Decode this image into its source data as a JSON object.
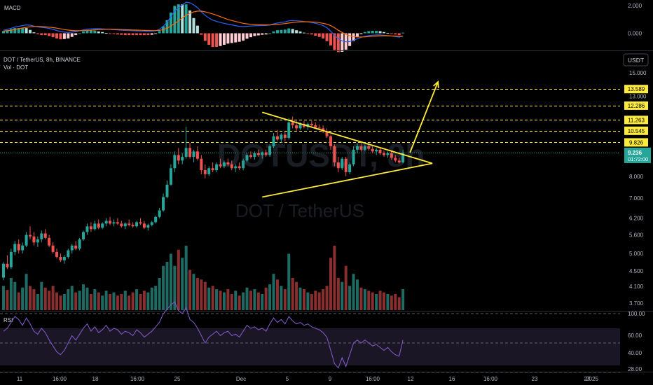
{
  "chart_data": {
    "type": "candlestick",
    "symbol_line": "DOT / TetherUS, 8h, BINANCE",
    "volume_label": "Vol · DOT",
    "watermark_symbol": "DOTUSDT, 8h",
    "watermark_name": "DOT / TetherUS",
    "currency_button": "USDT",
    "scale": "log",
    "price_ticks": [
      "15.000",
      "13.000",
      "8.000",
      "7.000",
      "6.200",
      "5.600",
      "5.000",
      "4.500",
      "4.100",
      "3.700"
    ],
    "price_tick_values": [
      15.0,
      13.0,
      8.0,
      7.0,
      6.2,
      5.6,
      5.0,
      4.5,
      4.1,
      3.7
    ],
    "level_lines": [
      {
        "label": "13.589",
        "value": 13.589
      },
      {
        "label": "12.286",
        "value": 12.286
      },
      {
        "label": "11.263",
        "value": 11.263
      },
      {
        "label": "10.545",
        "value": 10.545
      },
      {
        "label": "9.826",
        "value": 9.826
      }
    ],
    "last_price": {
      "label": "9.236",
      "value": 9.236,
      "countdown": "01:72:00"
    },
    "level_color": "#ffeb3b",
    "up_color": "#26a69a",
    "down_color": "#ef5350",
    "triangle": {
      "color": "#ffeb3b",
      "upper_start": 11.8,
      "lower_start": 7.05,
      "apex": 8.65,
      "breakout_target": 14.2
    },
    "candles": [
      [
        4.32,
        4.75,
        4.25,
        4.7
      ],
      [
        4.7,
        4.95,
        4.55,
        4.6
      ],
      [
        4.6,
        5.15,
        4.55,
        5.05
      ],
      [
        5.05,
        5.4,
        4.95,
        5.3
      ],
      [
        5.3,
        5.45,
        5.0,
        5.1
      ],
      [
        5.1,
        5.35,
        5.0,
        5.25
      ],
      [
        5.25,
        5.7,
        5.2,
        5.6
      ],
      [
        5.6,
        5.9,
        5.45,
        5.55
      ],
      [
        5.55,
        5.7,
        5.25,
        5.35
      ],
      [
        5.35,
        5.55,
        5.2,
        5.45
      ],
      [
        5.45,
        5.75,
        5.35,
        5.65
      ],
      [
        5.65,
        5.8,
        5.45,
        5.5
      ],
      [
        5.5,
        5.6,
        5.2,
        5.25
      ],
      [
        5.25,
        5.35,
        5.0,
        5.05
      ],
      [
        5.05,
        5.15,
        4.85,
        4.9
      ],
      [
        4.9,
        5.0,
        4.75,
        4.8
      ],
      [
        4.8,
        4.95,
        4.7,
        4.9
      ],
      [
        4.9,
        5.15,
        4.85,
        5.1
      ],
      [
        5.1,
        5.3,
        5.0,
        5.25
      ],
      [
        5.25,
        5.4,
        5.1,
        5.15
      ],
      [
        5.15,
        5.5,
        5.1,
        5.45
      ],
      [
        5.45,
        5.75,
        5.4,
        5.7
      ],
      [
        5.7,
        6.0,
        5.6,
        5.9
      ],
      [
        5.9,
        6.05,
        5.7,
        5.8
      ],
      [
        5.8,
        6.1,
        5.75,
        6.0
      ],
      [
        6.0,
        6.15,
        5.8,
        5.85
      ],
      [
        5.85,
        6.05,
        5.8,
        6.0
      ],
      [
        6.0,
        6.2,
        5.9,
        6.1
      ],
      [
        6.1,
        6.25,
        5.95,
        6.0
      ],
      [
        6.0,
        6.15,
        5.9,
        6.05
      ],
      [
        6.05,
        6.2,
        5.95,
        6.0
      ],
      [
        6.0,
        6.1,
        5.85,
        5.9
      ],
      [
        5.9,
        6.05,
        5.8,
        6.0
      ],
      [
        6.0,
        6.15,
        5.9,
        5.95
      ],
      [
        5.95,
        6.05,
        5.85,
        5.9
      ],
      [
        5.9,
        6.1,
        5.85,
        6.05
      ],
      [
        6.05,
        6.2,
        5.95,
        6.0
      ],
      [
        6.0,
        6.1,
        5.8,
        5.85
      ],
      [
        5.85,
        6.0,
        5.75,
        5.95
      ],
      [
        5.95,
        6.1,
        5.9,
        6.05
      ],
      [
        6.05,
        6.3,
        6.0,
        6.25
      ],
      [
        6.25,
        6.6,
        6.2,
        6.5
      ],
      [
        6.5,
        7.2,
        6.45,
        7.05
      ],
      [
        7.05,
        7.8,
        7.0,
        7.6
      ],
      [
        7.6,
        8.6,
        7.55,
        8.4
      ],
      [
        8.4,
        9.3,
        8.2,
        9.1
      ],
      [
        9.1,
        9.5,
        8.6,
        8.8
      ],
      [
        8.8,
        9.2,
        8.6,
        9.0
      ],
      [
        9.0,
        10.8,
        8.9,
        9.5
      ],
      [
        9.5,
        9.8,
        8.9,
        9.0
      ],
      [
        9.0,
        9.4,
        8.7,
        9.3
      ],
      [
        9.3,
        9.6,
        8.8,
        8.9
      ],
      [
        8.9,
        9.1,
        8.1,
        8.3
      ],
      [
        8.3,
        8.6,
        7.9,
        8.1
      ],
      [
        8.1,
        8.5,
        8.0,
        8.4
      ],
      [
        8.4,
        8.7,
        8.2,
        8.3
      ],
      [
        8.3,
        8.7,
        8.2,
        8.6
      ],
      [
        8.6,
        8.9,
        8.4,
        8.5
      ],
      [
        8.5,
        8.8,
        8.4,
        8.7
      ],
      [
        8.7,
        8.9,
        8.5,
        8.6
      ],
      [
        8.6,
        8.8,
        8.3,
        8.4
      ],
      [
        8.4,
        8.6,
        8.2,
        8.5
      ],
      [
        8.5,
        8.7,
        8.3,
        8.4
      ],
      [
        8.4,
        8.9,
        8.3,
        8.8
      ],
      [
        8.8,
        9.2,
        8.7,
        9.1
      ],
      [
        9.1,
        9.3,
        8.9,
        9.0
      ],
      [
        9.0,
        9.3,
        8.85,
        9.2
      ],
      [
        9.2,
        9.4,
        9.0,
        9.1
      ],
      [
        9.1,
        9.3,
        8.9,
        9.25
      ],
      [
        9.25,
        9.4,
        9.0,
        9.1
      ],
      [
        9.1,
        9.7,
        9.0,
        9.6
      ],
      [
        9.6,
        10.4,
        9.5,
        10.2
      ],
      [
        10.2,
        10.6,
        9.9,
        10.0
      ],
      [
        10.0,
        10.4,
        9.8,
        10.3
      ],
      [
        10.3,
        10.5,
        9.9,
        10.1
      ],
      [
        10.1,
        11.4,
        10.0,
        11.1
      ],
      [
        11.1,
        11.5,
        10.7,
        10.9
      ],
      [
        10.9,
        11.2,
        10.5,
        10.7
      ],
      [
        10.7,
        11.1,
        10.6,
        11.0
      ],
      [
        11.0,
        11.2,
        10.7,
        10.8
      ],
      [
        10.8,
        11.1,
        10.6,
        11.0
      ],
      [
        11.0,
        11.2,
        10.8,
        10.9
      ],
      [
        10.9,
        11.1,
        10.7,
        10.75
      ],
      [
        10.75,
        10.95,
        10.6,
        10.7
      ],
      [
        10.7,
        10.9,
        10.4,
        10.5
      ],
      [
        10.5,
        10.7,
        10.1,
        10.2
      ],
      [
        10.2,
        10.3,
        9.4,
        9.6
      ],
      [
        9.6,
        9.7,
        8.5,
        8.7
      ],
      [
        8.7,
        9.0,
        8.2,
        8.4
      ],
      [
        8.4,
        9.0,
        8.3,
        8.9
      ],
      [
        8.9,
        9.0,
        8.0,
        8.2
      ],
      [
        8.2,
        8.7,
        8.1,
        8.6
      ],
      [
        8.6,
        9.6,
        8.5,
        9.4
      ],
      [
        9.4,
        9.8,
        9.2,
        9.6
      ],
      [
        9.6,
        9.8,
        9.3,
        9.4
      ],
      [
        9.4,
        9.7,
        9.3,
        9.6
      ],
      [
        9.6,
        9.75,
        9.35,
        9.45
      ],
      [
        9.45,
        9.6,
        9.2,
        9.3
      ],
      [
        9.3,
        9.5,
        9.1,
        9.4
      ],
      [
        9.4,
        9.5,
        9.1,
        9.2
      ],
      [
        9.2,
        9.35,
        9.0,
        9.1
      ],
      [
        9.1,
        9.3,
        8.95,
        9.2
      ],
      [
        9.2,
        9.3,
        8.85,
        8.95
      ],
      [
        8.95,
        9.1,
        8.7,
        8.8
      ],
      [
        8.8,
        8.95,
        8.65,
        8.7
      ],
      [
        8.7,
        9.4,
        8.65,
        9.236
      ]
    ],
    "volumes": [
      30,
      25,
      40,
      35,
      22,
      28,
      45,
      30,
      26,
      20,
      35,
      28,
      24,
      30,
      22,
      18,
      20,
      26,
      30,
      22,
      24,
      32,
      28,
      20,
      26,
      22,
      18,
      24,
      20,
      22,
      18,
      20,
      24,
      18,
      22,
      26,
      20,
      24,
      22,
      28,
      30,
      40,
      55,
      60,
      70,
      55,
      75,
      65,
      80,
      50,
      45,
      40,
      38,
      35,
      28,
      30,
      26,
      24,
      22,
      26,
      20,
      24,
      18,
      22,
      28,
      24,
      26,
      22,
      20,
      28,
      32,
      45,
      38,
      30,
      26,
      70,
      40,
      35,
      28,
      26,
      22,
      20,
      24,
      22,
      26,
      30,
      65,
      80,
      40,
      35,
      55,
      30,
      45,
      38,
      28,
      26,
      24,
      22,
      20,
      24,
      22,
      20,
      18,
      20,
      16,
      26
    ],
    "macd": {
      "label": "MACD",
      "ticks": [
        "2.000",
        "0.000"
      ],
      "tick_values": [
        2.0,
        0.0
      ],
      "macd_line": [
        0.22,
        0.28,
        0.36,
        0.45,
        0.5,
        0.55,
        0.6,
        0.58,
        0.52,
        0.46,
        0.42,
        0.4,
        0.35,
        0.28,
        0.2,
        0.12,
        0.08,
        0.06,
        0.08,
        0.12,
        0.18,
        0.25,
        0.3,
        0.32,
        0.34,
        0.33,
        0.32,
        0.3,
        0.28,
        0.26,
        0.24,
        0.22,
        0.2,
        0.19,
        0.18,
        0.17,
        0.16,
        0.15,
        0.14,
        0.14,
        0.18,
        0.28,
        0.5,
        0.8,
        1.2,
        1.6,
        1.85,
        2.05,
        2.25,
        2.2,
        2.05,
        1.85,
        1.55,
        1.3,
        1.1,
        0.95,
        0.85,
        0.78,
        0.72,
        0.66,
        0.6,
        0.55,
        0.5,
        0.48,
        0.5,
        0.52,
        0.54,
        0.55,
        0.56,
        0.56,
        0.6,
        0.68,
        0.74,
        0.78,
        0.82,
        0.9,
        0.92,
        0.9,
        0.88,
        0.85,
        0.82,
        0.78,
        0.72,
        0.65,
        0.55,
        0.4,
        0.15,
        -0.15,
        -0.4,
        -0.55,
        -0.62,
        -0.6,
        -0.5,
        -0.4,
        -0.3,
        -0.22,
        -0.17,
        -0.14,
        -0.12,
        -0.12,
        -0.14,
        -0.17,
        -0.2,
        -0.24,
        -0.28,
        -0.2
      ],
      "signal_line": [
        0.15,
        0.18,
        0.22,
        0.28,
        0.33,
        0.38,
        0.43,
        0.47,
        0.49,
        0.49,
        0.48,
        0.46,
        0.44,
        0.41,
        0.37,
        0.32,
        0.27,
        0.23,
        0.2,
        0.18,
        0.18,
        0.19,
        0.21,
        0.23,
        0.25,
        0.27,
        0.28,
        0.29,
        0.29,
        0.28,
        0.28,
        0.27,
        0.26,
        0.25,
        0.24,
        0.23,
        0.22,
        0.21,
        0.2,
        0.19,
        0.19,
        0.21,
        0.27,
        0.37,
        0.52,
        0.7,
        0.9,
        1.1,
        1.3,
        1.45,
        1.55,
        1.6,
        1.6,
        1.55,
        1.48,
        1.4,
        1.3,
        1.2,
        1.1,
        1.0,
        0.92,
        0.85,
        0.78,
        0.72,
        0.68,
        0.65,
        0.63,
        0.62,
        0.61,
        0.6,
        0.6,
        0.62,
        0.64,
        0.67,
        0.7,
        0.74,
        0.78,
        0.8,
        0.82,
        0.83,
        0.83,
        0.82,
        0.8,
        0.77,
        0.72,
        0.66,
        0.55,
        0.4,
        0.22,
        0.06,
        -0.08,
        -0.18,
        -0.24,
        -0.27,
        -0.27,
        -0.26,
        -0.24,
        -0.22,
        -0.2,
        -0.19,
        -0.18,
        -0.18,
        -0.19,
        -0.2,
        -0.22,
        -0.22
      ]
    },
    "rsi": {
      "label": "RSI",
      "ticks": [
        "100.00",
        "60.00",
        "40.00",
        "28.00"
      ],
      "tick_values": [
        100.0,
        60.0,
        40.0,
        28.0
      ],
      "bands": [
        70,
        50,
        30
      ],
      "values": [
        58,
        60,
        64,
        68,
        66,
        62,
        67,
        63,
        58,
        56,
        60,
        57,
        52,
        48,
        44,
        42,
        45,
        50,
        55,
        52,
        56,
        60,
        63,
        58,
        61,
        57,
        59,
        62,
        58,
        60,
        59,
        56,
        58,
        57,
        55,
        59,
        57,
        54,
        56,
        58,
        61,
        64,
        70,
        73,
        76,
        78,
        72,
        70,
        74,
        66,
        64,
        60,
        55,
        50,
        54,
        56,
        58,
        55,
        57,
        58,
        55,
        56,
        54,
        58,
        62,
        60,
        61,
        59,
        60,
        58,
        63,
        67,
        64,
        66,
        63,
        68,
        65,
        63,
        64,
        62,
        63,
        61,
        60,
        59,
        57,
        54,
        45,
        36,
        33,
        40,
        34,
        42,
        50,
        52,
        50,
        52,
        50,
        48,
        49,
        47,
        45,
        47,
        44,
        42,
        41,
        52
      ]
    },
    "time_labels": [
      "11",
      "16:00",
      "18",
      "16:00",
      "25",
      "Dec",
      "5",
      "9",
      "16:00",
      "12",
      "16",
      "16:00",
      "23",
      "27",
      "2025"
    ]
  }
}
